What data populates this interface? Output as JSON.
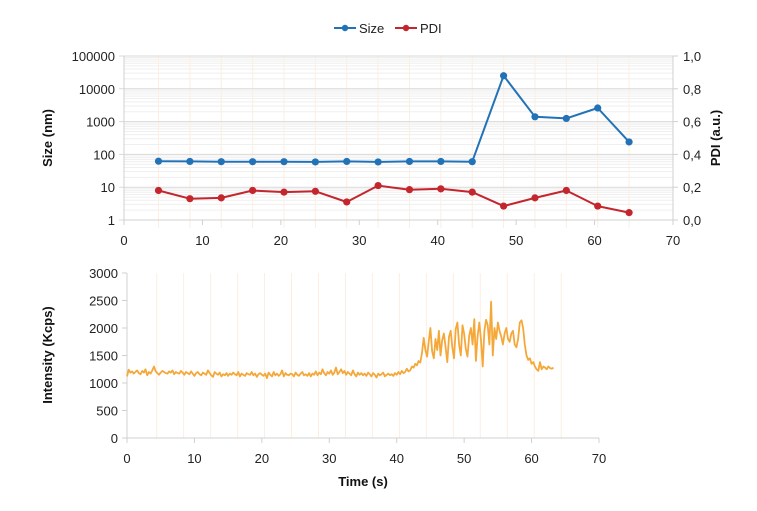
{
  "chart_data": [
    {
      "type": "line",
      "title": "",
      "xlabel": "",
      "ylabel": "Size (nm)",
      "y2label": "PDI (a.u.)",
      "xlim": [
        0,
        70
      ],
      "xticks": [
        "0",
        "10",
        "20",
        "30",
        "40",
        "50",
        "60",
        "70"
      ],
      "yscale": "log",
      "ylim": [
        1,
        100000
      ],
      "yticks": [
        "1",
        "10",
        "100",
        "1000",
        "10000",
        "100000"
      ],
      "y2lim": [
        0,
        1
      ],
      "y2ticks": [
        "0,0",
        "0,2",
        "0,4",
        "0,6",
        "0,8",
        "1,0"
      ],
      "legend": {
        "position": "top-center",
        "entries": [
          "Size",
          "PDI"
        ]
      },
      "grid": true,
      "x": [
        4.4,
        8.4,
        12.4,
        16.4,
        20.4,
        24.4,
        28.4,
        32.4,
        36.4,
        40.4,
        44.4,
        48.4,
        52.4,
        56.4,
        60.4,
        64.4
      ],
      "series": [
        {
          "name": "Size",
          "axis": "left",
          "color": "#2272b8",
          "values": [
            62,
            61,
            60,
            60,
            60,
            59,
            61,
            59,
            61,
            61,
            60,
            25000,
            1400,
            1250,
            2600,
            240
          ]
        },
        {
          "name": "PDI",
          "axis": "right",
          "color": "#c4262e",
          "values": [
            0.18,
            0.13,
            0.135,
            0.18,
            0.17,
            0.175,
            0.11,
            0.21,
            0.185,
            0.19,
            0.17,
            0.085,
            0.135,
            0.18,
            0.085,
            0.045
          ]
        }
      ]
    },
    {
      "type": "line",
      "title": "",
      "xlabel": "Time (s)",
      "ylabel": "Intensity (Kcps)",
      "xlim": [
        0,
        70
      ],
      "xticks": [
        "0",
        "10",
        "20",
        "30",
        "40",
        "50",
        "60",
        "70"
      ],
      "ylim": [
        0,
        3000
      ],
      "yticks": [
        "0",
        "500",
        "1000",
        "1500",
        "2000",
        "2500",
        "3000"
      ],
      "grid": false,
      "series": [
        {
          "name": "Intensity",
          "color": "#f5a83a",
          "x_step": 0.25,
          "x_start": 0,
          "values": [
            1120,
            1240,
            1190,
            1210,
            1170,
            1200,
            1230,
            1180,
            1160,
            1220,
            1190,
            1250,
            1140,
            1200,
            1170,
            1230,
            1300,
            1210,
            1180,
            1150,
            1190,
            1220,
            1200,
            1180,
            1170,
            1210,
            1190,
            1230,
            1160,
            1200,
            1180,
            1170,
            1220,
            1190,
            1150,
            1200,
            1180,
            1160,
            1210,
            1170,
            1130,
            1180,
            1200,
            1160,
            1140,
            1190,
            1170,
            1150,
            1230,
            1180,
            1140,
            1110,
            1200,
            1170,
            1150,
            1190,
            1120,
            1160,
            1140,
            1180,
            1130,
            1170,
            1150,
            1190,
            1160,
            1140,
            1200,
            1120,
            1170,
            1150,
            1130,
            1180,
            1160,
            1150,
            1200,
            1140,
            1170,
            1110,
            1160,
            1180,
            1150,
            1130,
            1170,
            1090,
            1190,
            1150,
            1120,
            1200,
            1140,
            1170,
            1130,
            1160,
            1230,
            1120,
            1180,
            1150,
            1140,
            1170,
            1160,
            1120,
            1190,
            1150,
            1130,
            1170,
            1200,
            1140,
            1160,
            1130,
            1180,
            1120,
            1170,
            1150,
            1210,
            1140,
            1190,
            1160,
            1250,
            1180,
            1140,
            1200,
            1170,
            1230,
            1150,
            1190,
            1280,
            1160,
            1200,
            1250,
            1180,
            1220,
            1150,
            1200,
            1170,
            1140,
            1230,
            1160,
            1120,
            1190,
            1150,
            1180,
            1140,
            1170,
            1130,
            1190,
            1160,
            1120,
            1180,
            1150,
            1100,
            1170,
            1140,
            1160,
            1190,
            1120,
            1150,
            1170,
            1140,
            1160,
            1130,
            1180,
            1150,
            1200,
            1160,
            1220,
            1180,
            1200,
            1260,
            1210,
            1230,
            1300,
            1280,
            1350,
            1320,
            1400,
            1370,
            1550,
            1820,
            1600,
            1480,
            1750,
            2000,
            1580,
            1450,
            1800,
            1600,
            1950,
            1500,
            1780,
            1900,
            1650,
            1380,
            1840,
            1950,
            1650,
            1450,
            1980,
            2100,
            1700,
            1500,
            2050,
            1900,
            1620,
            1480,
            1860,
            2000,
            1700,
            2160,
            1400,
            1850,
            2100,
            1780,
            1300,
            1950,
            2150,
            2050,
            1700,
            2480,
            1500,
            2000,
            1800,
            2100,
            1950,
            1850,
            1700,
            1900,
            2000,
            1800,
            1750,
            1900,
            1950,
            1700,
            1650,
            1800,
            2100,
            2140,
            2000,
            1700,
            1500,
            1420,
            1450,
            1350,
            1380,
            1300,
            1250,
            1220,
            1380,
            1250,
            1300,
            1280,
            1250,
            1300,
            1270,
            1260,
            1280
          ]
        }
      ]
    }
  ]
}
